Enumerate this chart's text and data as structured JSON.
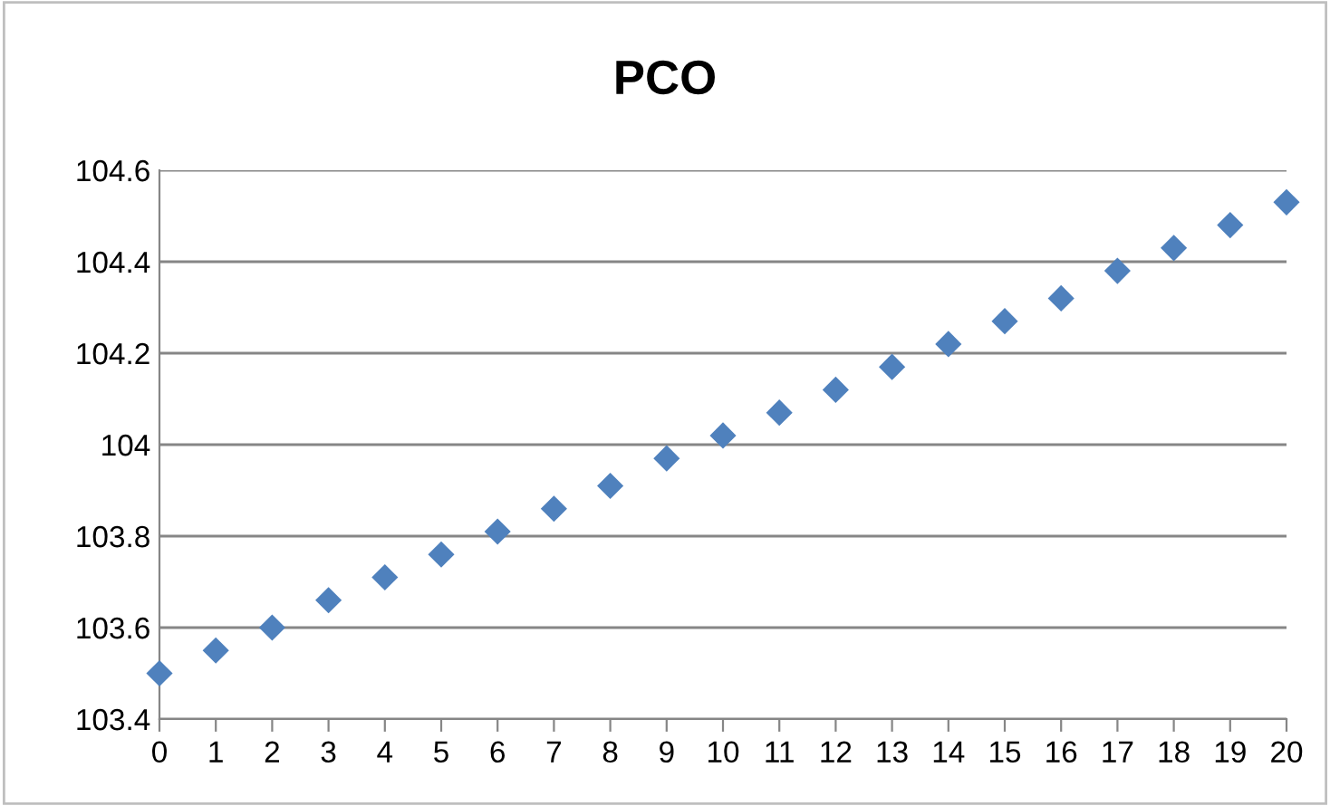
{
  "chart_data": {
    "type": "scatter",
    "title": "PCO",
    "x": [
      0,
      1,
      2,
      3,
      4,
      5,
      6,
      7,
      8,
      9,
      10,
      11,
      12,
      13,
      14,
      15,
      16,
      17,
      18,
      19,
      20
    ],
    "values": [
      103.5,
      103.55,
      103.6,
      103.66,
      103.71,
      103.76,
      103.81,
      103.86,
      103.91,
      103.97,
      104.02,
      104.07,
      104.12,
      104.17,
      104.22,
      104.27,
      104.32,
      104.38,
      104.43,
      104.48,
      104.53
    ],
    "color": "#4f81bd",
    "marker": "diamond",
    "xlim": [
      0,
      20
    ],
    "xticks": [
      0,
      1,
      2,
      3,
      4,
      5,
      6,
      7,
      8,
      9,
      10,
      11,
      12,
      13,
      14,
      15,
      16,
      17,
      18,
      19,
      20
    ],
    "ylim": [
      103.4,
      104.6
    ],
    "yticks": [
      {
        "value": 103.4,
        "label": "103.4"
      },
      {
        "value": 103.6,
        "label": "103.6"
      },
      {
        "value": 103.8,
        "label": "103.8"
      },
      {
        "value": 104,
        "label": "104"
      },
      {
        "value": 104.2,
        "label": "104.2"
      },
      {
        "value": 104.4,
        "label": "104.4"
      },
      {
        "value": 104.6,
        "label": "104.6"
      }
    ],
    "grid": "y"
  }
}
